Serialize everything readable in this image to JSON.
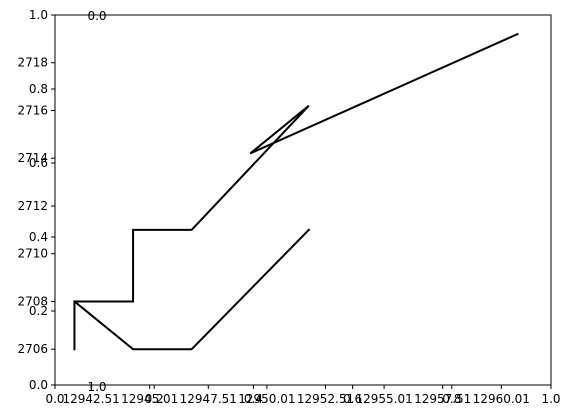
{
  "chart_data": {
    "type": "line",
    "title": "",
    "xlabel": "",
    "ylabel": "",
    "grid": false,
    "line_color": "#000000",
    "x_primary": {
      "range": [
        12940.97,
        12962.13
      ],
      "ticks": [
        {
          "value": 12942.51,
          "label": "12942.51"
        },
        {
          "value": 12945.01,
          "label": "12945.01"
        },
        {
          "value": 12947.51,
          "label": "12947.51"
        },
        {
          "value": 12950.01,
          "label": "12950.01"
        },
        {
          "value": 12952.51,
          "label": "12952.51"
        },
        {
          "value": 12955.01,
          "label": "12955.01"
        },
        {
          "value": 12957.51,
          "label": "12957.51"
        },
        {
          "value": 12960.01,
          "label": "12960.01"
        }
      ]
    },
    "y_primary": {
      "range": [
        2704.5,
        2720.0
      ],
      "ticks": [
        {
          "value": 2706,
          "label": "2706"
        },
        {
          "value": 2708,
          "label": "2708"
        },
        {
          "value": 2710,
          "label": "2710"
        },
        {
          "value": 2712,
          "label": "2712"
        },
        {
          "value": 2714,
          "label": "2714"
        },
        {
          "value": 2716,
          "label": "2716"
        },
        {
          "value": 2718,
          "label": "2718"
        }
      ]
    },
    "x_overlay": {
      "range": [
        0,
        1
      ],
      "ticks": [
        {
          "value": 0.0,
          "label": "0.0"
        },
        {
          "value": 0.2,
          "label": "0.2"
        },
        {
          "value": 0.4,
          "label": "0.4"
        },
        {
          "value": 0.6,
          "label": "0.6"
        },
        {
          "value": 0.8,
          "label": "0.8"
        },
        {
          "value": 1.0,
          "label": "1.0"
        }
      ]
    },
    "y_overlay": {
      "range": [
        0,
        1
      ],
      "ticks": [
        {
          "value": 0.0,
          "label": "0.0"
        },
        {
          "value": 0.2,
          "label": "0.2"
        },
        {
          "value": 0.4,
          "label": "0.4"
        },
        {
          "value": 0.6,
          "label": "0.6"
        },
        {
          "value": 0.8,
          "label": "0.8"
        },
        {
          "value": 1.0,
          "label": "1.0"
        }
      ]
    },
    "stray_labels": [
      {
        "text": "0.0",
        "anchor": "top-left-above"
      },
      {
        "text": "1.0",
        "anchor": "bottom-left-inside"
      }
    ],
    "series": [
      {
        "x": [
          12941.8,
          12941.8,
          12944.3,
          12944.3,
          12946.8,
          12951.8,
          12949.3,
          12960.7
        ],
        "y": [
          2706.0,
          2708.0,
          2708.0,
          2711.0,
          2711.0,
          2716.2,
          2714.2,
          2719.2
        ]
      },
      {
        "x": [
          12941.8,
          12944.3,
          12946.8,
          12951.8
        ],
        "y": [
          2708.0,
          2706.0,
          2706.0,
          2711.0
        ]
      }
    ]
  }
}
